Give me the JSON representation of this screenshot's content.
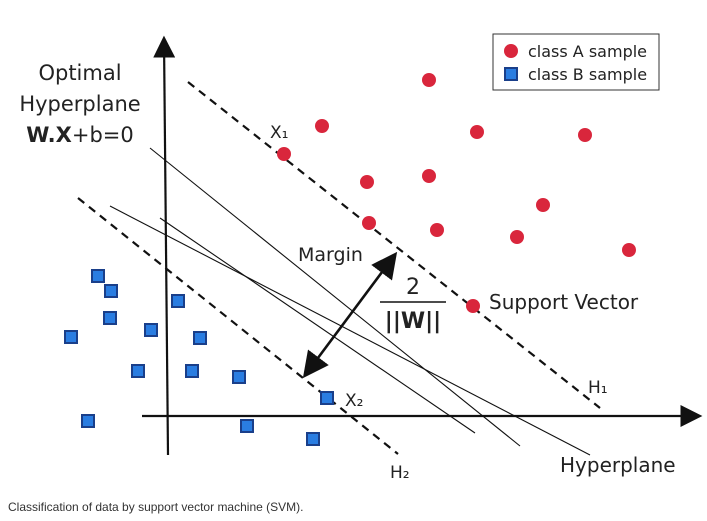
{
  "diagram": {
    "title_line1": "Optimal",
    "title_line2": "Hyperplane",
    "equation_bold": "W.X",
    "equation_rest": "+b=0",
    "margin_label": "Margin",
    "margin_numerator": "2",
    "margin_denominator": "||W||",
    "support_vector_label": "Support Vector",
    "x1_label": "X₁",
    "x2_label": "X₂",
    "h1_label": "H₁",
    "h2_label": "H₂",
    "hyperplane_label": "Hyperplane",
    "legend": {
      "class_a": "class A sample",
      "class_b": "class B sample"
    },
    "colors": {
      "class_a": "#d9263c",
      "class_b": "#2a7de1",
      "class_b_border": "#1a3f8a",
      "line": "#111111"
    }
  },
  "caption": "Classification of data by support vector machine (SVM)."
}
